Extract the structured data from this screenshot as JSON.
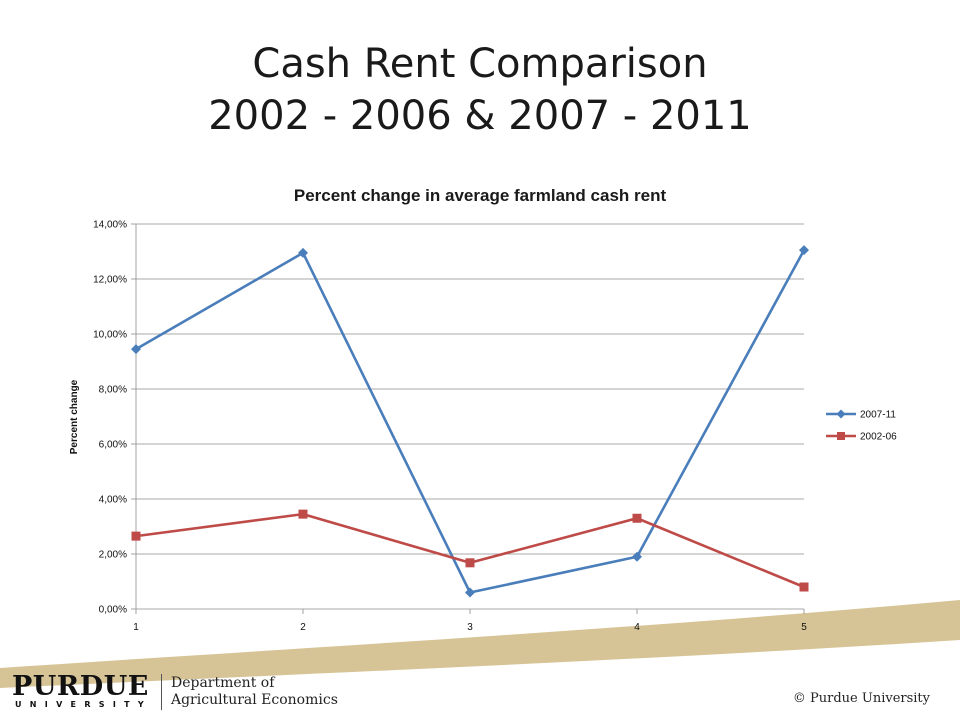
{
  "slide": {
    "title_line1": "Cash Rent Comparison",
    "title_line2": "2002 - 2006 & 2007 - 2011"
  },
  "footer": {
    "logo_main": "PURDUE",
    "logo_sub": "UNIVERSITY",
    "department_line1": "Department of",
    "department_line2": "Agricultural Economics",
    "copyright": "© Purdue University"
  },
  "colors": {
    "series_2007_11": "#4a7ebb",
    "series_2002_06": "#be4b48",
    "gold_swoosh": "#d6c496"
  },
  "chart_data": {
    "type": "line",
    "title": "Percent change in average farmland cash rent",
    "xlabel": "",
    "ylabel": "Percent change",
    "categories": [
      "1",
      "2",
      "3",
      "4",
      "5"
    ],
    "ylim": [
      0,
      0.14
    ],
    "yticks": [
      "0,00%",
      "2,00%",
      "4,00%",
      "6,00%",
      "8,00%",
      "10,00%",
      "12,00%",
      "14,00%"
    ],
    "grid": true,
    "legend": "right",
    "series": [
      {
        "name": "2007-11",
        "marker": "diamond",
        "values": [
          0.0945,
          0.1295,
          0.006,
          0.019,
          0.1305
        ]
      },
      {
        "name": "2002-06",
        "marker": "square",
        "values": [
          0.0265,
          0.0345,
          0.0168,
          0.033,
          0.008
        ]
      }
    ]
  }
}
